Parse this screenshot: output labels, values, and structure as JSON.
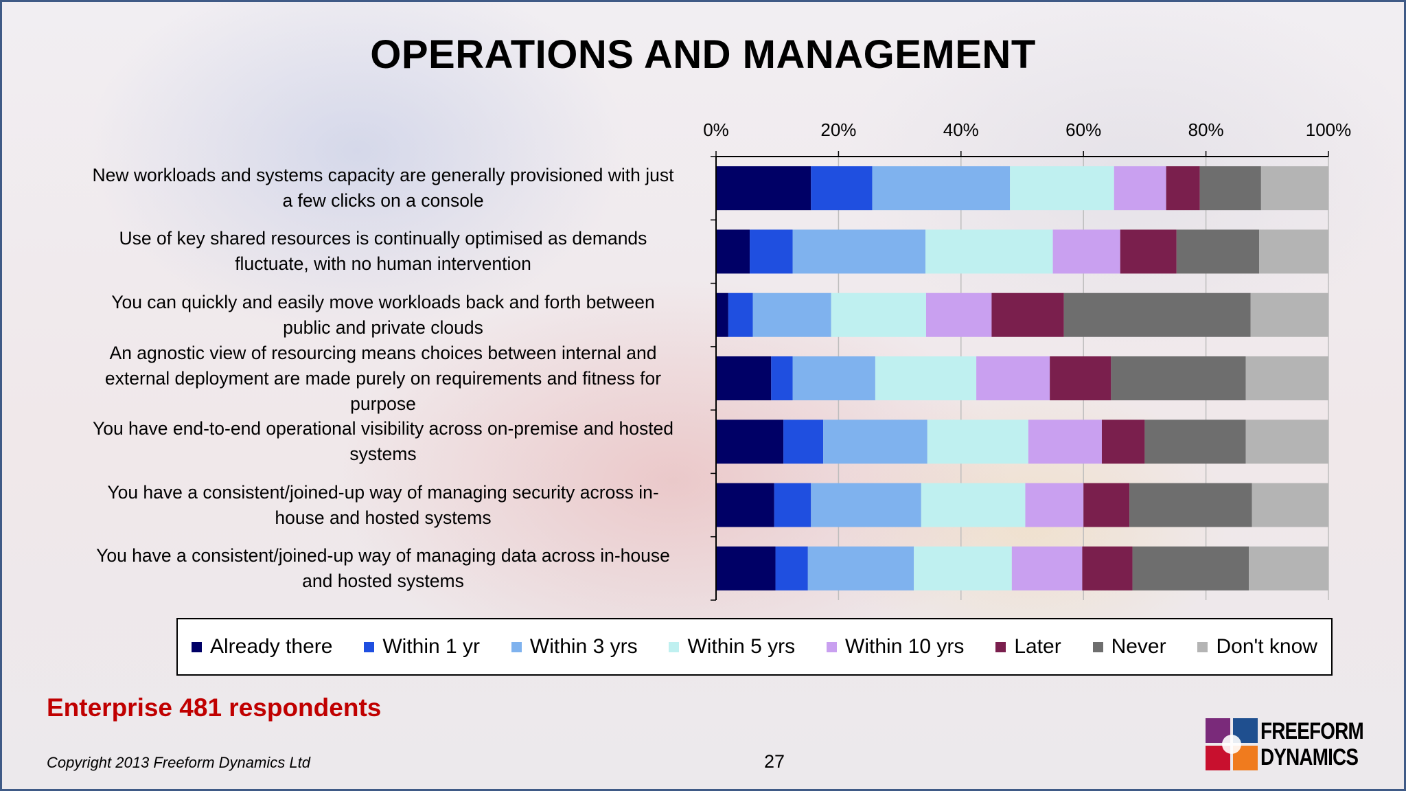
{
  "title": "OPERATIONS AND MANAGEMENT",
  "subtitle": "Enterprise 481 respondents",
  "copyright": "Copyright 2013 Freeform Dynamics Ltd",
  "page_number": "27",
  "logo": {
    "line1": "FREEFORM",
    "line2": "DYNAMICS"
  },
  "chart_data": {
    "type": "bar",
    "orientation": "horizontal",
    "stacked": "percent",
    "title": "OPERATIONS AND MANAGEMENT",
    "xlim": [
      0,
      100
    ],
    "x_ticks": [
      "0%",
      "20%",
      "40%",
      "60%",
      "80%",
      "100%"
    ],
    "x_tick_values": [
      0,
      20,
      40,
      60,
      80,
      100
    ],
    "categories": [
      "New workloads and systems capacity are generally provisioned with just a few clicks on a console",
      "Use of key shared resources is continually optimised as demands fluctuate, with no human intervention",
      "You can quickly and easily move workloads back and forth between public and private clouds",
      "An agnostic view of resourcing means choices between internal and external deployment are made purely on requirements and fitness for purpose",
      "You have end-to-end operational visibility across on-premise and hosted systems",
      "You have a consistent/joined-up way of managing security across in-house and hosted systems",
      "You have a consistent/joined-up way of managing data across in-house and hosted systems"
    ],
    "category_lines": [
      [
        "New workloads and systems capacity are generally provisioned with just",
        "a few clicks on a console"
      ],
      [
        "Use of key shared resources is continually optimised as demands",
        "fluctuate, with no human intervention"
      ],
      [
        "You can quickly and easily move workloads back and forth between",
        "public and private clouds"
      ],
      [
        "An agnostic view of resourcing means choices between internal and",
        "external deployment are made purely on requirements and fitness for",
        "purpose"
      ],
      [
        "You have end-to-end operational visibility across on-premise and hosted",
        "systems"
      ],
      [
        "You have a consistent/joined-up way of managing security across in-",
        "house and hosted systems"
      ],
      [
        "You have a consistent/joined-up way of managing data across in-house",
        "and hosted systems"
      ]
    ],
    "series": [
      {
        "name": "Already there",
        "color": "#000066",
        "values": [
          15.5,
          5.5,
          2,
          9,
          11,
          9.5,
          9.7
        ]
      },
      {
        "name": "Within 1 yr",
        "color": "#1f4fe0",
        "values": [
          10,
          7,
          4,
          3.5,
          6.5,
          6,
          5.3
        ]
      },
      {
        "name": "Within 3 yrs",
        "color": "#7fb2ee",
        "values": [
          22.5,
          21.7,
          12.8,
          13.5,
          17,
          18,
          17.3
        ]
      },
      {
        "name": "Within 5 yrs",
        "color": "#bff0f0",
        "values": [
          17,
          20.8,
          15.5,
          16.5,
          16.5,
          17,
          16
        ]
      },
      {
        "name": "Within 10 yrs",
        "color": "#c9a0f0",
        "values": [
          8.5,
          11,
          10.7,
          12,
          12,
          9.5,
          11.5
        ]
      },
      {
        "name": "Later",
        "color": "#7a1f4d",
        "values": [
          5.5,
          9.2,
          11.8,
          10,
          7,
          7.5,
          8.2
        ]
      },
      {
        "name": "Never",
        "color": "#6e6e6e",
        "values": [
          10,
          13.5,
          30.5,
          22,
          16.5,
          20,
          19
        ]
      },
      {
        "name": "Don't know",
        "color": "#b4b4b4",
        "values": [
          11,
          11.3,
          12.7,
          13.5,
          13.5,
          12.5,
          13
        ]
      }
    ],
    "legend_position": "bottom",
    "grid": true
  }
}
